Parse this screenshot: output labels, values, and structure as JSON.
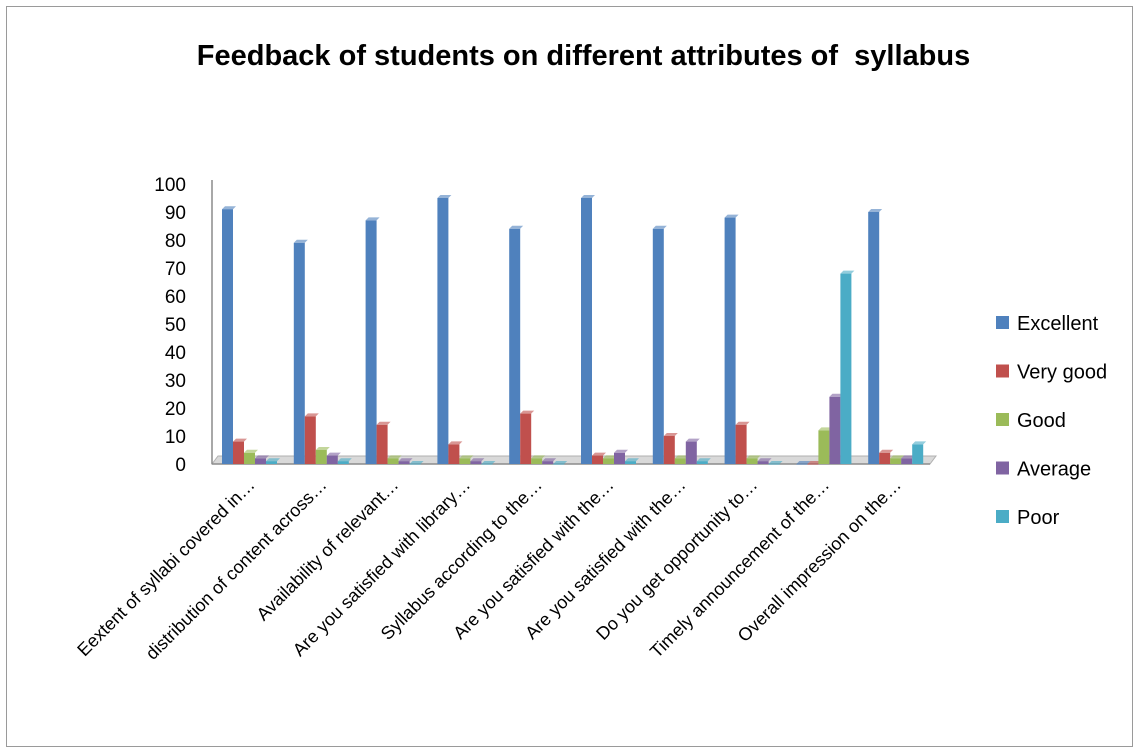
{
  "chart_data": {
    "type": "bar",
    "title": "Feedback of students on different attributes of  syllabus",
    "categories": [
      "Eextent of syllabi covered in…",
      "distribution of content across…",
      "Availability of relevant…",
      "Are you satisfied with library…",
      "Syllabus according to the…",
      "Are you satisfied with the…",
      "Are you satisfied with the…",
      "Do you get opportunity to…",
      "Timely announcement of the…",
      "Overall impression on the…"
    ],
    "series": [
      {
        "name": "Excellent",
        "color": "#4f81bd",
        "values": [
          91,
          79,
          87,
          95,
          84,
          95,
          84,
          88,
          0,
          90
        ]
      },
      {
        "name": "Very good",
        "color": "#c0504d",
        "values": [
          8,
          17,
          14,
          7,
          18,
          3,
          10,
          14,
          0,
          4
        ]
      },
      {
        "name": "Good",
        "color": "#9bbb59",
        "values": [
          4,
          5,
          2,
          2,
          2,
          2,
          2,
          2,
          12,
          2
        ]
      },
      {
        "name": "Average",
        "color": "#8064a2",
        "values": [
          2,
          3,
          1,
          1,
          1,
          4,
          8,
          1,
          24,
          2
        ]
      },
      {
        "name": "Poor",
        "color": "#4bacc6",
        "values": [
          1,
          1,
          0,
          0,
          0,
          1,
          1,
          0,
          68,
          7
        ]
      }
    ],
    "y_ticks": [
      "0",
      "10",
      "20",
      "30",
      "40",
      "50",
      "60",
      "70",
      "80",
      "90",
      "100"
    ],
    "ylim": [
      0,
      100
    ],
    "xlabel": "",
    "ylabel": "",
    "grid": false,
    "legend": "right"
  }
}
